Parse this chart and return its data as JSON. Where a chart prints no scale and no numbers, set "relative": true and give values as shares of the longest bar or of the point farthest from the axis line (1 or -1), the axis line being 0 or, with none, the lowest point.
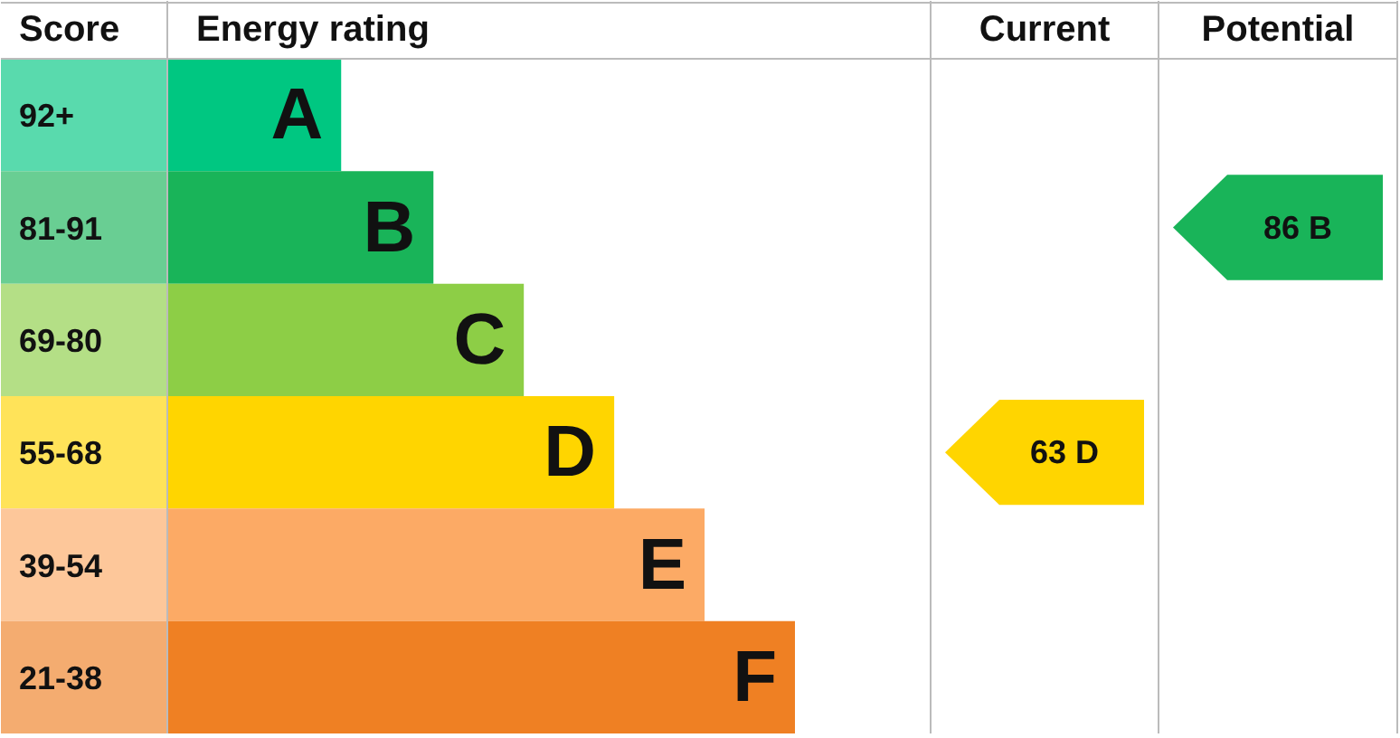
{
  "chart_data": {
    "type": "bar",
    "orientation": "horizontal",
    "relative": true,
    "ylabel": "Score",
    "xlabel": "Energy rating",
    "categories": [
      "A",
      "B",
      "C",
      "D",
      "E",
      "F"
    ],
    "values": [
      0.277,
      0.424,
      0.568,
      0.712,
      0.856,
      1
    ],
    "colors": [
      "#00c781",
      "#19b459",
      "#8dce46",
      "#ffd500",
      "#fcaa65",
      "#ef8023"
    ],
    "annotations": [
      "92+",
      "81-91",
      "69-80",
      "55-68",
      "39-54",
      "21-38",
      "Current",
      "63 D",
      "Potential",
      "86 B"
    ]
  }
}
